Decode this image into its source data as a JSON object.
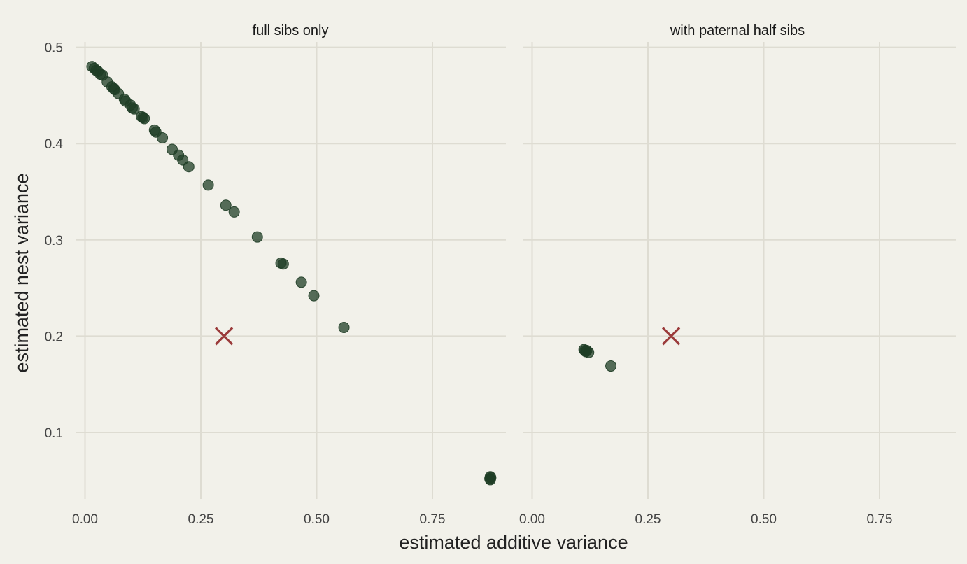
{
  "chart_data": {
    "type": "scatter",
    "xlabel": "estimated additive variance",
    "ylabel": "estimated nest variance",
    "xlim": [
      -0.02,
      0.92
    ],
    "ylim": [
      0.035,
      0.505
    ],
    "x_ticks": [
      0.0,
      0.25,
      0.5,
      0.75
    ],
    "x_tick_labels": [
      "0.00",
      "0.25",
      "0.50",
      "0.75"
    ],
    "y_ticks": [
      0.1,
      0.2,
      0.3,
      0.4,
      0.5
    ],
    "y_tick_labels": [
      "0.1",
      "0.2",
      "0.3",
      "0.4",
      "0.5"
    ],
    "grid": true,
    "colors": {
      "points": "#1f3d26",
      "truth_marker": "#9b3b3b",
      "background": "#f2f1ea",
      "grid": "#dedcd2"
    },
    "truth": {
      "x": 0.3,
      "y": 0.2
    },
    "panels": [
      {
        "title": "full sibs only",
        "points": [
          [
            0.015,
            0.48
          ],
          [
            0.02,
            0.478
          ],
          [
            0.024,
            0.476
          ],
          [
            0.028,
            0.475
          ],
          [
            0.033,
            0.472
          ],
          [
            0.038,
            0.471
          ],
          [
            0.048,
            0.464
          ],
          [
            0.058,
            0.459
          ],
          [
            0.062,
            0.457
          ],
          [
            0.064,
            0.456
          ],
          [
            0.072,
            0.452
          ],
          [
            0.085,
            0.446
          ],
          [
            0.088,
            0.444
          ],
          [
            0.098,
            0.44
          ],
          [
            0.102,
            0.437
          ],
          [
            0.106,
            0.436
          ],
          [
            0.122,
            0.428
          ],
          [
            0.125,
            0.427
          ],
          [
            0.128,
            0.426
          ],
          [
            0.15,
            0.414
          ],
          [
            0.153,
            0.412
          ],
          [
            0.167,
            0.406
          ],
          [
            0.188,
            0.394
          ],
          [
            0.202,
            0.388
          ],
          [
            0.211,
            0.383
          ],
          [
            0.224,
            0.376
          ],
          [
            0.266,
            0.357
          ],
          [
            0.304,
            0.336
          ],
          [
            0.322,
            0.329
          ],
          [
            0.372,
            0.303
          ],
          [
            0.423,
            0.276
          ],
          [
            0.428,
            0.275
          ],
          [
            0.467,
            0.256
          ],
          [
            0.494,
            0.242
          ],
          [
            0.559,
            0.209
          ],
          [
            0.874,
            0.052
          ],
          [
            0.875,
            0.054
          ],
          [
            0.875,
            0.051
          ],
          [
            0.876,
            0.053
          ]
        ]
      },
      {
        "title": "with paternal half sibs",
        "points": [
          [
            0.112,
            0.186
          ],
          [
            0.114,
            0.185
          ],
          [
            0.116,
            0.184
          ],
          [
            0.118,
            0.185
          ],
          [
            0.122,
            0.183
          ],
          [
            0.17,
            0.169
          ]
        ]
      }
    ]
  }
}
